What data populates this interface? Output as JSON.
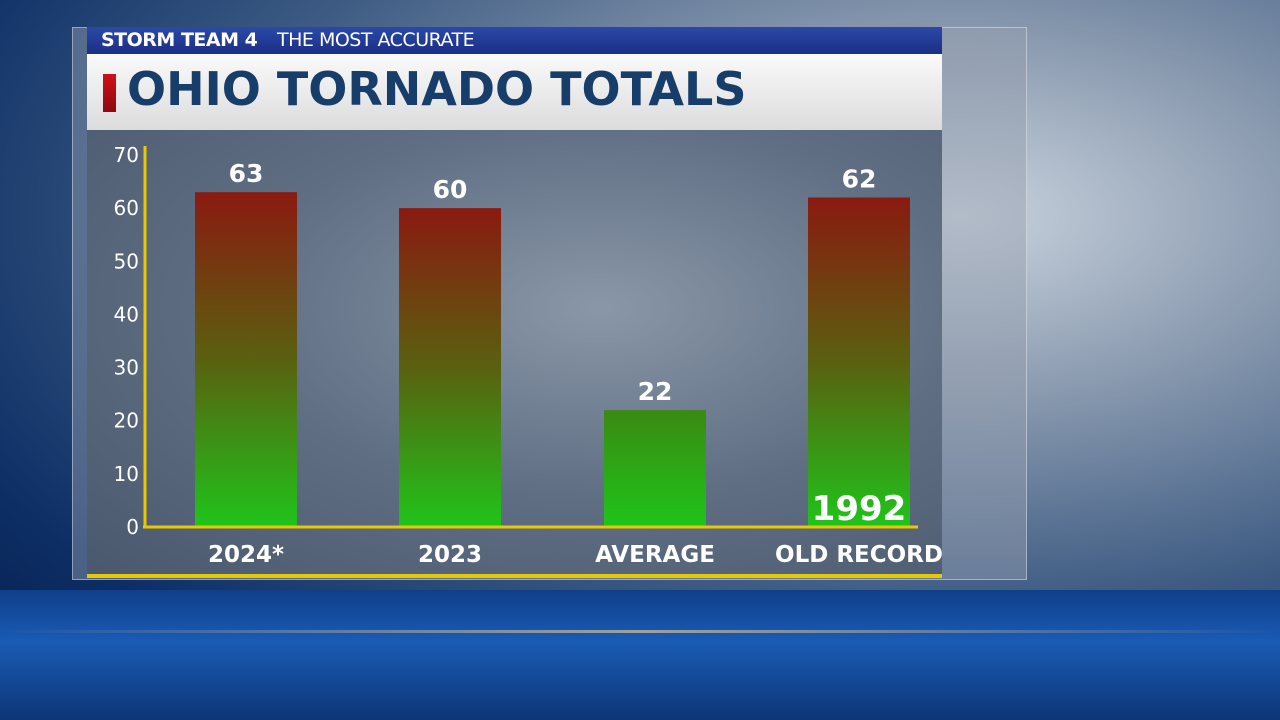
{
  "header": {
    "brand": "STORM TEAM 4",
    "tagline": "THE MOST ACCURATE",
    "title": "OHIO TORNADO TOTALS"
  },
  "chart_data": {
    "type": "bar",
    "title": "OHIO TORNADO TOTALS",
    "categories": [
      "2024*",
      "2023",
      "AVERAGE",
      "OLD RECORD"
    ],
    "values": [
      63,
      60,
      22,
      62
    ],
    "annotations": [
      {
        "category": "OLD RECORD",
        "text": "1992"
      }
    ],
    "ylim": [
      0,
      70
    ],
    "yticks": [
      0,
      10,
      20,
      30,
      40,
      50,
      60,
      70
    ],
    "grid": false,
    "colors": {
      "bar_top": "#8a1a10",
      "bar_bottom": "#1fc41a",
      "axis": "#e8c800"
    }
  }
}
